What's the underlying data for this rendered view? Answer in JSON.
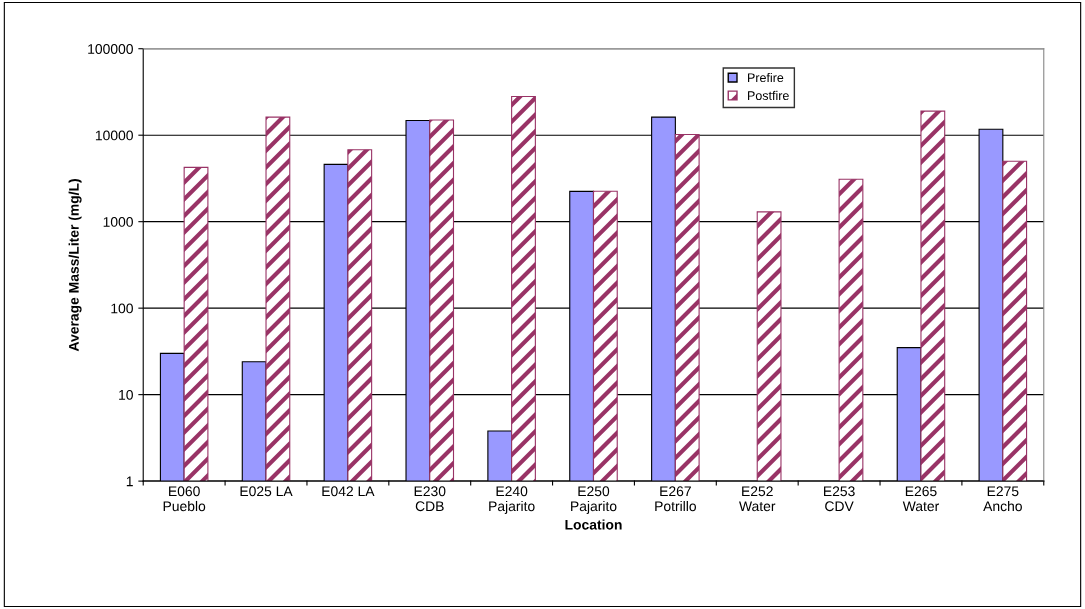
{
  "chart_data": {
    "type": "bar",
    "xlabel": "Location",
    "ylabel": "Average Mass/Liter (mg/L)",
    "categories": [
      "E060\nPueblo",
      "E025 LA",
      "E042 LA",
      "E230\nCDB",
      "E240\nPajarito",
      "E250\nPajarito",
      "E267\nPotrillo",
      "E252\nWater",
      "E253\nCDV",
      "E265\nWater",
      "E275\nAncho"
    ],
    "series": [
      {
        "name": "Prefire",
        "color": "#9999ff",
        "values": [
          30,
          24,
          4600,
          14800,
          3.8,
          2240,
          16200,
          null,
          null,
          35,
          11700
        ]
      },
      {
        "name": "Postfire",
        "color": "#993366",
        "values": [
          4250,
          16200,
          6800,
          15000,
          28000,
          2250,
          10200,
          1300,
          3100,
          19000,
          5000
        ]
      }
    ],
    "log": true,
    "ylim": [
      1,
      100000
    ],
    "yticks": [
      1,
      10,
      100,
      1000,
      10000,
      100000
    ],
    "grid": "y",
    "legend": "top right"
  }
}
